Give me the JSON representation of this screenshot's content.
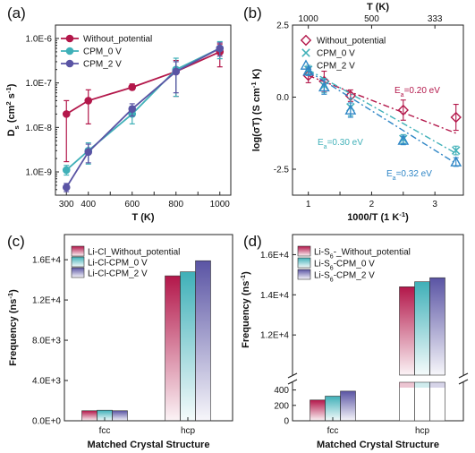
{
  "chart_data": [
    {
      "panel": "(a)",
      "type": "line",
      "xlabel": "T (K)",
      "ylabel": "Ds (cm² s⁻¹)",
      "ylabel_parts": {
        "main": "D",
        "sub": "s",
        "unit1": " (cm",
        "exp1": "2",
        "unit2": " s",
        "exp2": "-1",
        "unit3": ")"
      },
      "yscale": "log",
      "xlim": [
        250,
        1050
      ],
      "ylim": [
        3e-10,
        2e-06
      ],
      "x_ticks": [
        300,
        400,
        500,
        600,
        700,
        800,
        900,
        1000
      ],
      "x_tick_labels": [
        "300",
        "400",
        "600",
        "800",
        "1000"
      ],
      "x_tick_label_values": [
        300,
        400,
        600,
        800,
        1000
      ],
      "y_ticks": [
        1e-09,
        1e-08,
        1e-07,
        1e-06
      ],
      "y_tick_labels": [
        "1.0E-9",
        "1.0E-8",
        "1.0E-7",
        "1.0E-6"
      ],
      "legend_position": "top-left",
      "series": [
        {
          "name": "Without_potential",
          "color": "#b3174a",
          "x": [
            300,
            400,
            600,
            800,
            1000
          ],
          "y": [
            2e-08,
            4e-08,
            8e-08,
            1.8e-07,
            5e-07
          ],
          "err_low": [
            1.7e-09,
            1.2e-08,
            7e-08,
            5e-08,
            2.3e-07
          ],
          "err_high": [
            4e-08,
            7e-08,
            9.5e-08,
            3.2e-07,
            7.5e-07
          ]
        },
        {
          "name": "CPM_0 V",
          "color": "#3fb0b8",
          "x": [
            300,
            400,
            600,
            800,
            1000
          ],
          "y": [
            1.1e-09,
            3e-09,
            2e-08,
            2e-07,
            6e-07
          ],
          "err_low": [
            8.5e-10,
            1.5e-09,
            1.2e-08,
            5e-08,
            3.5e-07
          ],
          "err_high": [
            1.4e-09,
            4.5e-09,
            3e-08,
            3.6e-07,
            8.5e-07
          ]
        },
        {
          "name": "CPM_2 V",
          "color": "#5a54a4",
          "x": [
            300,
            400,
            600,
            800,
            1000
          ],
          "y": [
            4.5e-10,
            2.8e-09,
            2.6e-08,
            1.8e-07,
            6e-07
          ],
          "err_low": [
            3.6e-10,
            1.6e-09,
            1.8e-08,
            6e-08,
            4e-07
          ],
          "err_high": [
            5.5e-10,
            4.2e-09,
            3.4e-08,
            3e-07,
            8e-07
          ]
        }
      ]
    },
    {
      "panel": "(b)",
      "type": "scatter",
      "xlabel": "1000/T (1 K⁻¹)",
      "xlabel_parts": {
        "main": "1000/T (1 K",
        "exp": "-1",
        "end": ")"
      },
      "ylabel": "log(σT) (S cm⁻¹ K)",
      "ylabel_parts": {
        "main": "log(σT) (S cm",
        "exp": "-1",
        "end": " K)"
      },
      "top_xlabel": "T (K)",
      "xlim": [
        0.75,
        3.45
      ],
      "ylim": [
        -3.4,
        2.5
      ],
      "x_ticks": [
        1,
        1.5,
        2,
        2.5,
        3
      ],
      "x_tick_labels": [
        "1",
        "2",
        "3"
      ],
      "x_tick_label_values": [
        1,
        2,
        3
      ],
      "top_x_ticks": [
        1.0,
        2.0,
        3.0
      ],
      "top_x_tick_labels": [
        "1000",
        "500",
        "333"
      ],
      "y_ticks": [
        2.5,
        0.0,
        -2.5
      ],
      "y_tick_labels": [
        "2.5",
        "0.0",
        "-2.5"
      ],
      "legend_position": "top-left",
      "series": [
        {
          "name": "Without_potential",
          "color": "#b3174a",
          "marker": "diamond",
          "x": [
            1.0,
            1.25,
            1.667,
            2.5,
            3.333
          ],
          "y": [
            0.75,
            0.55,
            0.05,
            -0.45,
            -0.7
          ],
          "err": [
            0.25,
            0.35,
            0.2,
            0.35,
            0.45
          ],
          "fit": {
            "x": [
              1.0,
              3.333
            ],
            "y": [
              0.75,
              -1.25
            ]
          },
          "annotation": "Ea=0.20 eV"
        },
        {
          "name": "CPM_0 V",
          "color": "#3fb0b8",
          "marker": "x",
          "x": [
            1.0,
            1.25,
            1.667,
            2.5,
            3.333
          ],
          "y": [
            0.95,
            0.4,
            -0.35,
            -1.45,
            -1.85
          ],
          "err": [
            0.15,
            0.25,
            0.3,
            0.15,
            0.15
          ],
          "fit": {
            "x": [
              1.0,
              3.333
            ],
            "y": [
              0.95,
              -1.95
            ]
          },
          "annotation": "Ea=0.30 eV"
        },
        {
          "name": "CPM_2 V",
          "color": "#2f86c6",
          "marker": "triangle",
          "x": [
            1.0,
            1.25,
            1.667,
            2.5,
            3.333
          ],
          "y": [
            0.9,
            0.35,
            -0.45,
            -1.5,
            -2.25
          ],
          "err": [
            0.15,
            0.25,
            0.25,
            0.15,
            0.15
          ],
          "fit": {
            "x": [
              1.0,
              3.333
            ],
            "y": [
              0.9,
              -2.3
            ]
          },
          "annotation": "Ea=0.32 eV"
        }
      ],
      "annotation_parts": [
        {
          "pre": "E",
          "sub": "a",
          "post": "=0.20 eV",
          "color": "#b3174a"
        },
        {
          "pre": "E",
          "sub": "a",
          "post": "=0.30 eV",
          "color": "#3fb0b8"
        },
        {
          "pre": "E",
          "sub": "a",
          "post": "=0.32 eV",
          "color": "#2f86c6"
        }
      ]
    },
    {
      "panel": "(c)",
      "type": "bar",
      "xlabel": "Matched Crystal Structure",
      "ylabel": "Frequency (ns⁻¹)",
      "ylabel_parts": {
        "main": "Frequency (ns",
        "exp": "-1",
        "end": ")"
      },
      "categories": [
        "fcc",
        "hcp"
      ],
      "ylim": [
        0,
        18500
      ],
      "y_ticks": [
        0,
        4000,
        8000,
        12000,
        16000
      ],
      "y_tick_labels": [
        "0.0E+0",
        "4.0E+3",
        "8.0E+3",
        "1.2E+4",
        "1.6E+4"
      ],
      "legend_position": "top-left",
      "series": [
        {
          "name": "Li-Cl_Without_potential",
          "color": "#b3174a",
          "values": [
            1000,
            14400
          ]
        },
        {
          "name": "Li-Cl-CPM_0 V",
          "color": "#3fb0b8",
          "values": [
            1050,
            14800
          ]
        },
        {
          "name": "Li-Cl-CPM_2 V",
          "color": "#5a54a4",
          "values": [
            1000,
            15900
          ]
        }
      ]
    },
    {
      "panel": "(d)",
      "type": "bar",
      "xlabel": "Matched Crystal Structure",
      "ylabel": "Frequency (ns⁻¹)",
      "ylabel_parts": {
        "main": "Frequency (ns",
        "exp": "-1",
        "end": ")"
      },
      "categories": [
        "fcc",
        "hcp"
      ],
      "axis_break": {
        "lower": [
          0,
          500
        ],
        "upper": [
          10000,
          17000
        ]
      },
      "y_ticks_lower": [
        0,
        200,
        400
      ],
      "y_ticks_upper": [
        12000,
        14000,
        16000
      ],
      "y_tick_labels_lower": [
        "0",
        "200",
        "400"
      ],
      "y_tick_labels_upper": [
        "1.2E+4",
        "1.4E+4",
        "1.6E+4"
      ],
      "legend_position": "top-left",
      "series": [
        {
          "name": "Li-S6-_Without_potential",
          "name_parts": {
            "pre": "Li-S",
            "sub": "6",
            "post": "-_Without_potential"
          },
          "color": "#b3174a",
          "values": [
            270,
            14400
          ]
        },
        {
          "name": "Li-S6-CPM_0 V",
          "name_parts": {
            "pre": "Li-S",
            "sub": "6",
            "post": "-CPM_0 V"
          },
          "color": "#3fb0b8",
          "values": [
            320,
            14650
          ]
        },
        {
          "name": "Li-S6-CPM_2 V",
          "name_parts": {
            "pre": "Li-S",
            "sub": "6",
            "post": "-CPM_2 V"
          },
          "color": "#5a54a4",
          "values": [
            385,
            14850
          ]
        }
      ]
    }
  ]
}
